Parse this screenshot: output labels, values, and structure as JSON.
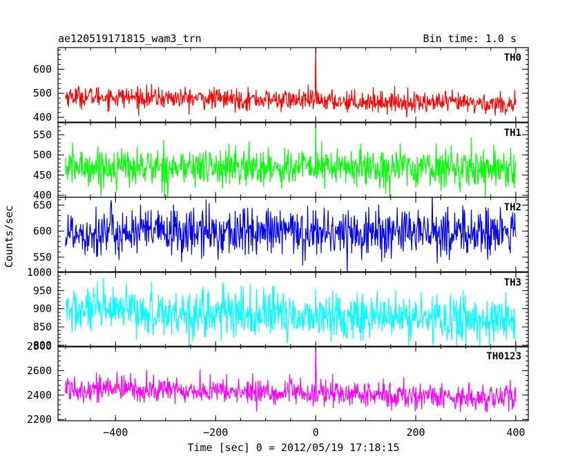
{
  "figure": {
    "title_left": "ae120519171815_wam3_trn",
    "title_right": "Bin time: 1.0 s",
    "ylabel": "Counts/sec",
    "xlabel": "Time [sec] 0 = 2012/05/19 17:18:15"
  },
  "chart_data": {
    "type": "line",
    "x_range": [
      -500,
      400
    ],
    "xlim": [
      -515,
      425
    ],
    "x_ticks": [
      -400,
      -200,
      0,
      200,
      400
    ],
    "x_tick_labels": [
      "−400",
      "−200",
      "0",
      "200",
      "400"
    ],
    "bin_time_sec": 1.0,
    "panels": [
      {
        "name": "TH0",
        "color": "#ff0000",
        "ylim": [
          380,
          690
        ],
        "y_ticks": [
          400,
          500,
          600
        ],
        "y_tick_labels": [
          "400",
          "500",
          "600"
        ],
        "mean_start": 488,
        "mean_end": 455,
        "noise": 22,
        "spike_value": 690
      },
      {
        "name": "TH1",
        "color": "#00ff00",
        "ylim": [
          395,
          580
        ],
        "y_ticks": [
          400,
          450,
          500,
          550
        ],
        "y_tick_labels": [
          "400",
          "450",
          "500",
          "550"
        ],
        "mean_start": 470,
        "mean_end": 468,
        "noise": 24,
        "spike_value": 578
      },
      {
        "name": "TH2",
        "color": "#0000ff",
        "ylim": [
          522,
          665
        ],
        "y_ticks": [
          550,
          600,
          650
        ],
        "y_tick_labels": [
          "550",
          "600",
          "650"
        ],
        "mean_start": 598,
        "mean_end": 597,
        "noise": 24,
        "spike_value": 640
      },
      {
        "name": "TH3",
        "color": "#00ffff",
        "ylim": [
          795,
          1000
        ],
        "y_ticks": [
          800,
          850,
          900,
          950,
          1000
        ],
        "y_tick_labels": [
          "800",
          "850",
          "900",
          "950",
          "1000"
        ],
        "mean_start": 895,
        "mean_end": 868,
        "noise": 33,
        "spike_value": 955
      },
      {
        "name": "TH0123",
        "color": "#ff00ff",
        "ylim": [
          2190,
          2800
        ],
        "y_ticks": [
          2200,
          2400,
          2600,
          2800
        ],
        "y_tick_labels": [
          "2200",
          "2400",
          "2600",
          "2800"
        ],
        "mean_start": 2460,
        "mean_end": 2375,
        "noise": 55,
        "spike_value": 2800
      }
    ]
  }
}
